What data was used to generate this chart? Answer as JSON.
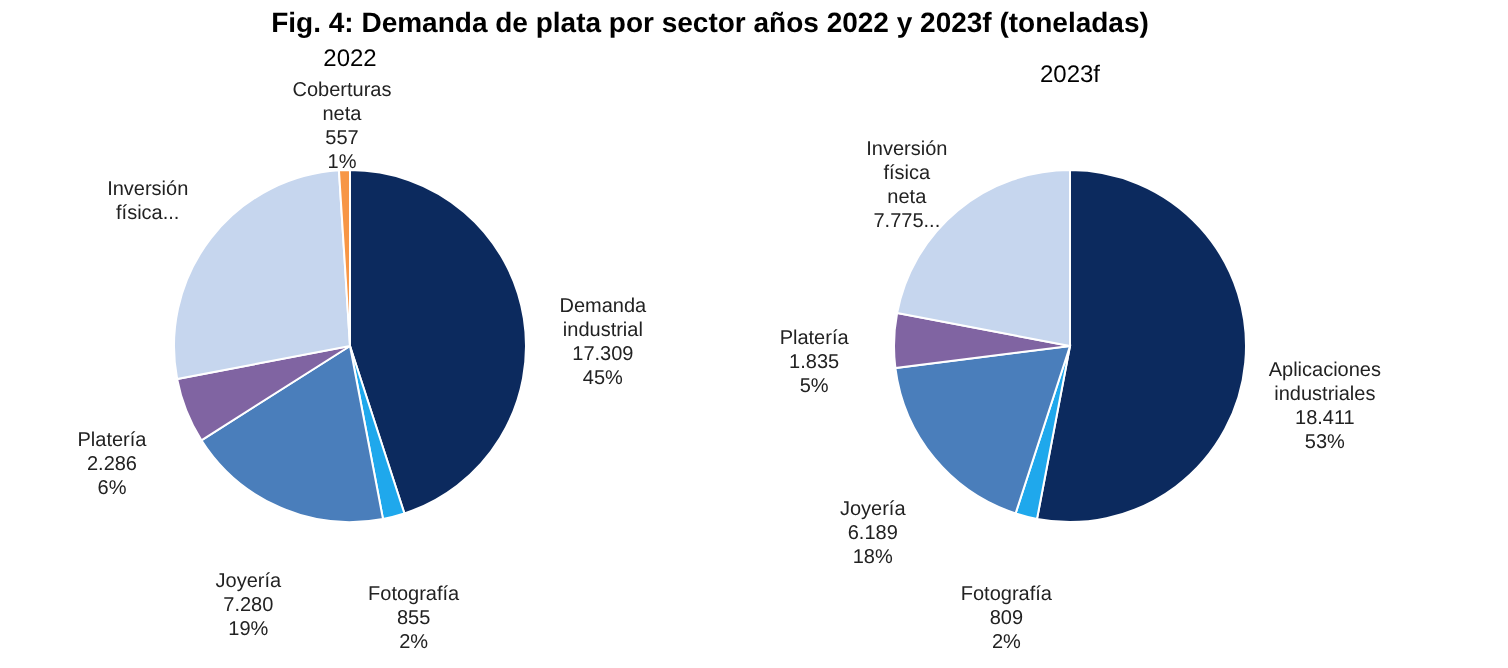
{
  "chart_data": [
    {
      "type": "pie",
      "title": "Fig. 4: Demanda de plata por sector años 2022 y 2023f (toneladas)",
      "subtitle": "2022",
      "categories": [
        "Demanda industrial",
        "Fotografía",
        "Joyería",
        "Platería",
        "Inversión física...",
        "Coberturas neta"
      ],
      "values": [
        45,
        2,
        19,
        6,
        27,
        1
      ],
      "value_labels": [
        "17.309\n45%",
        "855\n2%",
        "7.280\n19%",
        "2.286\n6%",
        null,
        "557\n1%"
      ],
      "colors": [
        "#0c2a5e",
        "#1fa8ec",
        "#4a7ebb",
        "#8064a2",
        "#c6d6ee",
        "#f79646"
      ]
    },
    {
      "type": "pie",
      "subtitle": "2023f",
      "categories": [
        "Aplicaciones industriales",
        "Fotografía",
        "Joyería",
        "Platería",
        "Inversión física neta"
      ],
      "values": [
        53,
        2,
        18,
        5,
        22
      ],
      "value_labels": [
        "18.411\n53%",
        "809\n2%",
        "6.189\n18%",
        "1.835\n5%",
        "7.775..."
      ],
      "colors": [
        "#0c2a5e",
        "#1fa8ec",
        "#4a7ebb",
        "#8064a2",
        "#c6d6ee"
      ]
    }
  ]
}
